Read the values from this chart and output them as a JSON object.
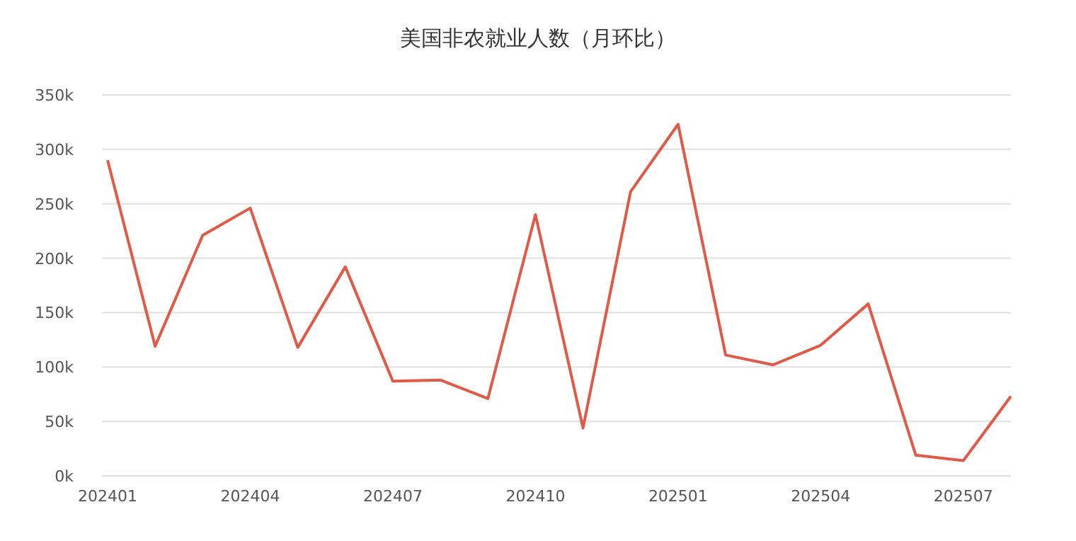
{
  "chart_data": {
    "type": "line",
    "title": "美国非农就业人数（月环比）",
    "categories": [
      "202401",
      null,
      null,
      "202404",
      null,
      null,
      "202407",
      null,
      null,
      "202410",
      null,
      null,
      "202501",
      null,
      null,
      "202504",
      null,
      null,
      "202507",
      null
    ],
    "series": [
      {
        "color": "#e05a47",
        "values": [
          290000,
          119000,
          221000,
          246000,
          118000,
          192000,
          87000,
          88000,
          71000,
          240000,
          44000,
          261000,
          323000,
          111000,
          102000,
          120000,
          158000,
          19000,
          14000,
          73000
        ]
      }
    ],
    "ylim": [
      0,
      350000
    ],
    "yticks": [
      {
        "value": 0,
        "label": "0k"
      },
      {
        "value": 50000,
        "label": "50k"
      },
      {
        "value": 100000,
        "label": "100k"
      },
      {
        "value": 150000,
        "label": "150k"
      },
      {
        "value": 200000,
        "label": "200k"
      },
      {
        "value": 250000,
        "label": "250k"
      },
      {
        "value": 300000,
        "label": "300k"
      },
      {
        "value": 350000,
        "label": "350k"
      }
    ],
    "grid": "y",
    "marker": "none",
    "line_style": "solid"
  }
}
